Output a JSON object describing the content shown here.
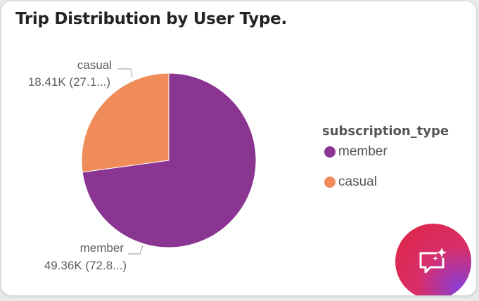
{
  "title": "Trip Distribution by User Type.",
  "legend": {
    "title": "subscription_type",
    "items": [
      {
        "label": "member",
        "color": "#8b3593"
      },
      {
        "label": "casual",
        "color": "#ef8c5a"
      }
    ]
  },
  "chart_data": {
    "type": "pie",
    "title": "Trip Distribution by User Type.",
    "legend_title": "subscription_type",
    "legend_position": "right",
    "slices": [
      {
        "name": "member",
        "value": 49360,
        "label_value": "49.36K",
        "label_pct": "72.8...)",
        "color": "#8b3593"
      },
      {
        "name": "casual",
        "value": 18410,
        "label_value": "18.41K",
        "label_pct": "27.1...)",
        "color": "#ef8c5a"
      }
    ]
  },
  "labels": {
    "casual_name": "casual",
    "casual_detail": "18.41K (27.1...)",
    "member_name": "member",
    "member_detail": "49.36K (72.8...)"
  },
  "copilot": {
    "icon": "copilot-chat-sparkle-icon"
  }
}
